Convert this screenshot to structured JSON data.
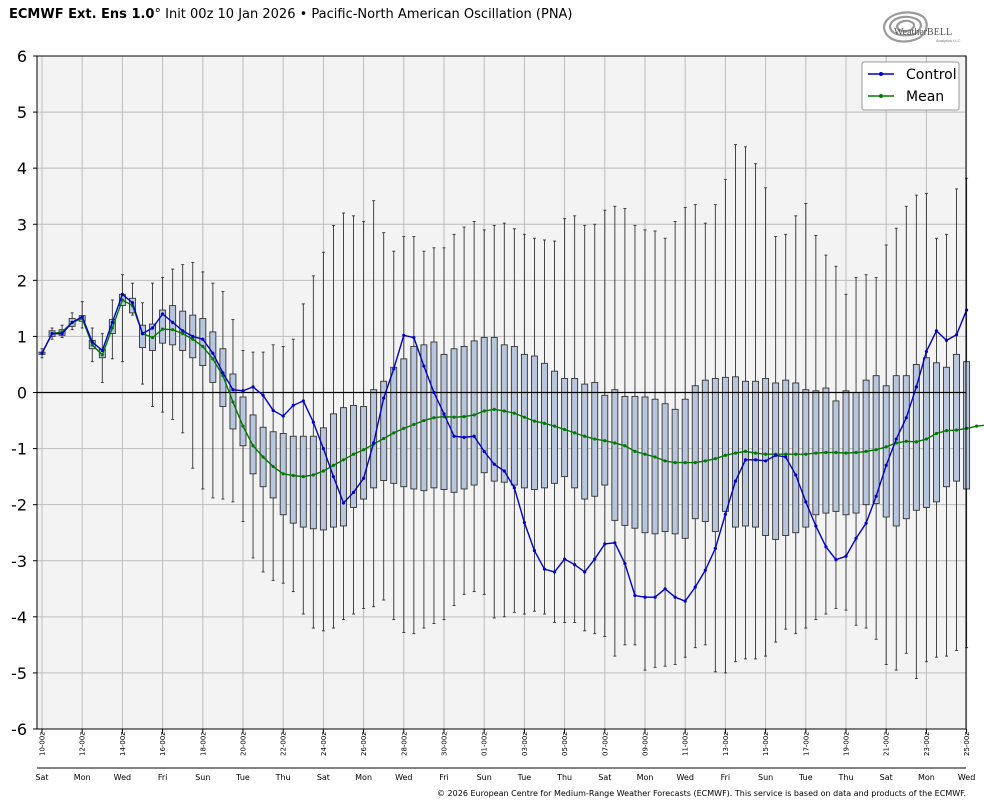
{
  "header": {
    "model": "ECMWF Ext. Ens 1.0",
    "degree": "°",
    "init": "Init 00z 10 Jan 2026",
    "separator": "•",
    "index_name": "Pacific-North American Oscillation (PNA)"
  },
  "logo": {
    "text": "WeatherBELL",
    "subtext": "Analytics LLC"
  },
  "credit": "© 2026 European Centre for Medium-Range Weather Forecasts (ECMWF). This service is based on data and products of the ECMWF.",
  "colors": {
    "control": "#0000cc",
    "mean": "#007a00",
    "box_fill": "#b7c6dc",
    "box_stroke": "#333333",
    "plot_bg": "#f3f3f3",
    "grid": "#bdbdbd"
  },
  "chart_data": {
    "type": "box",
    "ylim": [
      -6,
      6
    ],
    "yticks": [
      6,
      5,
      4,
      3,
      2,
      1,
      0,
      -1,
      -2,
      -3,
      -4,
      -5,
      -6
    ],
    "grid": true,
    "legend_position": "top-right",
    "x_date_labels": [
      "10-00z",
      "12-00z",
      "14-00z",
      "16-00z",
      "18-00z",
      "20-00z",
      "22-00z",
      "24-00z",
      "26-00z",
      "28-00z",
      "30-00z",
      "01-00z",
      "03-00z",
      "05-00z",
      "07-00z",
      "09-00z",
      "11-00z",
      "13-00z",
      "15-00z",
      "17-00z",
      "19-00z",
      "21-00z",
      "23-00z",
      "25-00z"
    ],
    "x_day_labels": [
      "Sat",
      "Mon",
      "Wed",
      "Fri",
      "Sun",
      "Tue",
      "Thu",
      "Sat",
      "Mon",
      "Wed",
      "Fri",
      "Sun",
      "Tue",
      "Thu",
      "Sat",
      "Mon",
      "Wed",
      "Fri",
      "Sun",
      "Tue",
      "Thu",
      "Sat",
      "Mon",
      "Wed"
    ],
    "series": [
      {
        "name": "Control",
        "values": [
          0.7,
          1.05,
          1.05,
          1.25,
          1.35,
          0.9,
          0.75,
          1.25,
          1.75,
          1.6,
          1.05,
          1.15,
          1.4,
          1.25,
          1.1,
          1.0,
          0.95,
          0.7,
          0.35,
          0.05,
          0.03,
          0.1,
          -0.05,
          -0.32,
          -0.42,
          -0.23,
          -0.15,
          -0.53,
          -1.0,
          -1.5,
          -1.97,
          -1.78,
          -1.53,
          -0.9,
          -0.1,
          0.42,
          1.02,
          0.98,
          0.47,
          0.0,
          -0.38,
          -0.78,
          -0.8,
          -0.78,
          -1.05,
          -1.28,
          -1.4,
          -1.7,
          -2.32,
          -2.82,
          -3.15,
          -3.2,
          -2.97,
          -3.07,
          -3.2,
          -2.97,
          -2.7,
          -2.68,
          -3.05,
          -3.62,
          -3.65,
          -3.65,
          -3.5,
          -3.65,
          -3.72,
          -3.47,
          -3.17,
          -2.78,
          -2.17,
          -1.58,
          -1.2,
          -1.2,
          -1.22,
          -1.12,
          -1.15,
          -1.47,
          -1.95,
          -2.38,
          -2.75,
          -2.98,
          -2.92,
          -2.6,
          -2.33,
          -1.85,
          -1.3,
          -0.83,
          -0.45,
          0.1,
          0.73,
          1.1,
          0.93,
          1.03,
          1.47
        ]
      },
      {
        "name": "Mean",
        "values": [
          0.7,
          1.05,
          1.08,
          1.25,
          1.32,
          0.85,
          0.67,
          1.15,
          1.65,
          1.55,
          1.05,
          0.98,
          1.13,
          1.12,
          1.05,
          0.95,
          0.82,
          0.6,
          0.3,
          -0.17,
          -0.6,
          -0.95,
          -1.15,
          -1.32,
          -1.45,
          -1.48,
          -1.5,
          -1.47,
          -1.4,
          -1.3,
          -1.2,
          -1.1,
          -1.02,
          -0.92,
          -0.82,
          -0.72,
          -0.64,
          -0.57,
          -0.5,
          -0.45,
          -0.43,
          -0.44,
          -0.43,
          -0.4,
          -0.33,
          -0.3,
          -0.33,
          -0.37,
          -0.44,
          -0.51,
          -0.55,
          -0.6,
          -0.66,
          -0.72,
          -0.78,
          -0.83,
          -0.86,
          -0.9,
          -0.95,
          -1.05,
          -1.1,
          -1.15,
          -1.22,
          -1.25,
          -1.25,
          -1.25,
          -1.22,
          -1.18,
          -1.12,
          -1.08,
          -1.05,
          -1.08,
          -1.1,
          -1.1,
          -1.1,
          -1.1,
          -1.1,
          -1.08,
          -1.07,
          -1.07,
          -1.08,
          -1.07,
          -1.05,
          -1.02,
          -0.97,
          -0.9,
          -0.87,
          -0.88,
          -0.83,
          -0.73,
          -0.68,
          -0.67,
          -0.64,
          -0.6,
          -0.58
        ]
      }
    ],
    "box_stats": {
      "q1": [
        0.68,
        1.0,
        1.02,
        1.18,
        1.27,
        0.78,
        0.62,
        1.05,
        1.55,
        1.42,
        0.8,
        0.75,
        0.88,
        0.85,
        0.75,
        0.62,
        0.48,
        0.18,
        -0.25,
        -0.65,
        -0.95,
        -1.45,
        -1.68,
        -1.88,
        -2.18,
        -2.33,
        -2.4,
        -2.43,
        -2.45,
        -2.4,
        -2.38,
        -2.05,
        -1.9,
        -1.7,
        -1.57,
        -1.62,
        -1.68,
        -1.72,
        -1.75,
        -1.7,
        -1.73,
        -1.78,
        -1.72,
        -1.65,
        -1.43,
        -1.58,
        -1.6,
        -1.65,
        -1.7,
        -1.73,
        -1.7,
        -1.62,
        -1.5,
        -1.7,
        -1.9,
        -1.85,
        -1.65,
        -2.28,
        -2.37,
        -2.42,
        -2.5,
        -2.52,
        -2.48,
        -2.52,
        -2.6,
        -2.25,
        -2.3,
        -2.48,
        -2.12,
        -2.4,
        -2.38,
        -2.4,
        -2.55,
        -2.62,
        -2.55,
        -2.5,
        -2.4,
        -2.18,
        -2.15,
        -2.12,
        -2.18,
        -2.15,
        -2.0,
        -1.98,
        -2.22,
        -2.38,
        -2.25,
        -2.1,
        -2.05,
        -1.95,
        -1.68,
        -1.58,
        -1.72
      ],
      "q3": [
        0.72,
        1.1,
        1.12,
        1.32,
        1.37,
        0.93,
        0.77,
        1.3,
        1.75,
        1.68,
        1.2,
        1.22,
        1.47,
        1.55,
        1.45,
        1.38,
        1.32,
        1.08,
        0.78,
        0.33,
        -0.08,
        -0.4,
        -0.62,
        -0.7,
        -0.73,
        -0.78,
        -0.78,
        -0.78,
        -0.63,
        -0.38,
        -0.27,
        -0.23,
        -0.25,
        0.05,
        0.2,
        0.45,
        0.6,
        0.82,
        0.85,
        0.9,
        0.68,
        0.78,
        0.82,
        0.92,
        0.98,
        0.98,
        0.85,
        0.82,
        0.68,
        0.65,
        0.52,
        0.38,
        0.25,
        0.25,
        0.15,
        0.18,
        -0.05,
        0.05,
        -0.07,
        -0.07,
        -0.08,
        -0.12,
        -0.2,
        -0.3,
        -0.12,
        0.12,
        0.22,
        0.25,
        0.27,
        0.28,
        0.2,
        0.2,
        0.25,
        0.17,
        0.22,
        0.17,
        0.05,
        0.03,
        0.08,
        -0.15,
        0.03,
        0.0,
        0.22,
        0.3,
        0.12,
        0.3,
        0.3,
        0.5,
        0.62,
        0.53,
        0.45,
        0.68,
        0.55
      ],
      "whisker_low": [
        0.62,
        0.95,
        0.98,
        1.12,
        1.15,
        0.55,
        0.18,
        0.6,
        0.55,
        1.38,
        0.15,
        -0.25,
        -0.35,
        -0.48,
        -0.72,
        -1.35,
        -1.72,
        -1.88,
        -1.9,
        -1.95,
        -2.3,
        -2.95,
        -3.2,
        -3.35,
        -3.4,
        -3.55,
        -3.95,
        -4.2,
        -4.25,
        -4.2,
        -4.05,
        -3.95,
        -3.85,
        -3.82,
        -3.7,
        -4.05,
        -4.28,
        -4.3,
        -4.2,
        -4.12,
        -4.05,
        -3.8,
        -3.6,
        -3.55,
        -3.6,
        -4.02,
        -4.0,
        -3.92,
        -3.95,
        -3.9,
        -3.95,
        -4.1,
        -4.1,
        -4.1,
        -4.25,
        -4.3,
        -4.35,
        -4.7,
        -4.5,
        -4.5,
        -4.95,
        -4.9,
        -4.88,
        -4.85,
        -4.72,
        -4.55,
        -4.5,
        -4.98,
        -5.0,
        -4.8,
        -4.75,
        -4.75,
        -4.7,
        -4.45,
        -4.22,
        -4.3,
        -4.2,
        -4.05,
        -3.95,
        -3.85,
        -3.88,
        -4.15,
        -4.2,
        -4.4,
        -4.85,
        -4.95,
        -4.65,
        -5.1,
        -4.8,
        -4.72,
        -4.7,
        -4.6,
        -4.55
      ],
      "whisker_high": [
        0.78,
        1.15,
        1.2,
        1.42,
        1.62,
        1.15,
        1.05,
        1.65,
        2.1,
        1.95,
        1.6,
        1.95,
        2.05,
        2.2,
        2.28,
        2.32,
        2.15,
        1.95,
        1.8,
        1.3,
        0.75,
        0.72,
        0.72,
        0.85,
        0.82,
        0.95,
        1.58,
        2.08,
        2.5,
        2.98,
        3.2,
        3.15,
        3.05,
        3.42,
        2.85,
        2.52,
        2.78,
        2.78,
        2.52,
        2.58,
        2.58,
        2.82,
        2.95,
        3.05,
        2.9,
        2.98,
        3.02,
        2.92,
        2.82,
        2.75,
        2.72,
        2.7,
        3.1,
        3.15,
        2.98,
        3.0,
        3.25,
        3.32,
        3.28,
        2.98,
        2.9,
        2.88,
        2.75,
        3.05,
        3.3,
        3.35,
        3.02,
        3.35,
        3.8,
        4.42,
        4.38,
        4.08,
        3.65,
        2.78,
        2.82,
        3.15,
        3.37,
        2.8,
        2.45,
        2.25,
        1.75,
        2.05,
        2.1,
        2.05,
        2.63,
        2.93,
        3.32,
        3.52,
        3.55,
        2.75,
        2.82,
        3.63,
        3.82
      ]
    }
  }
}
